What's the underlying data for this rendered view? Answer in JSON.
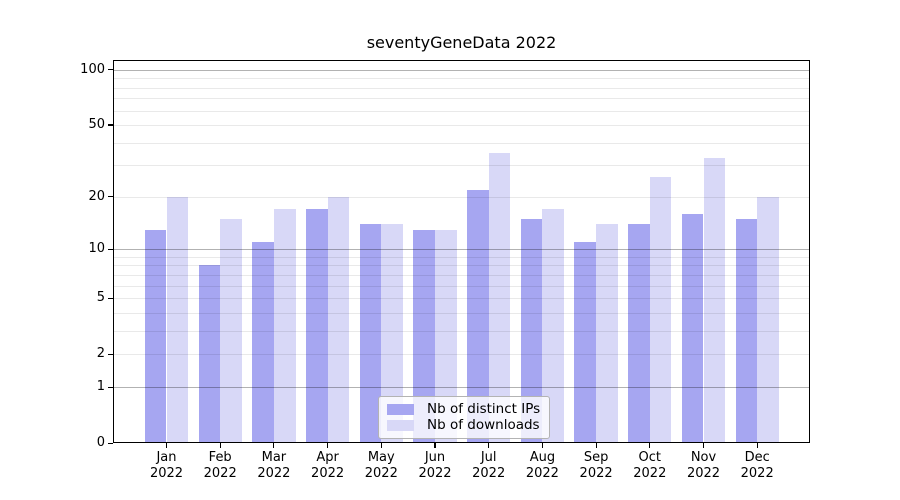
{
  "chart_data": {
    "type": "bar",
    "title": "seventyGeneData 2022",
    "scale": "log1p",
    "grid": "on",
    "categories": [
      "Jan",
      "Feb",
      "Mar",
      "Apr",
      "May",
      "Jun",
      "Jul",
      "Aug",
      "Sep",
      "Oct",
      "Nov",
      "Dec"
    ],
    "x_tick_line2": "2022",
    "series": [
      {
        "name": "Nb of distinct IPs",
        "color": "#a6a6f1",
        "values": [
          13,
          8,
          11,
          17,
          14,
          13,
          22,
          15,
          11,
          14,
          16,
          15
        ]
      },
      {
        "name": "Nb of downloads",
        "color": "#d8d8f7",
        "values": [
          20,
          15,
          17,
          20,
          14,
          13,
          35,
          17,
          14,
          26,
          33,
          20
        ]
      }
    ],
    "yticks": [
      100,
      50,
      20,
      10,
      5,
      2,
      1,
      0
    ],
    "major_gridlines": [
      100,
      10,
      1
    ],
    "minor_gridlines": [
      90,
      80,
      70,
      60,
      50,
      40,
      30,
      20,
      9,
      8,
      7,
      6,
      5,
      4,
      3,
      2
    ],
    "ylim": [
      0,
      113
    ],
    "legend": {
      "position": "lower center"
    },
    "colors": {
      "background": "#ffffff",
      "spine": "#000000",
      "text": "#000000",
      "major_grid": "#b3b3b3",
      "minor_grid": "#e9e9e9",
      "legend_border": "#b3b3b3"
    }
  }
}
